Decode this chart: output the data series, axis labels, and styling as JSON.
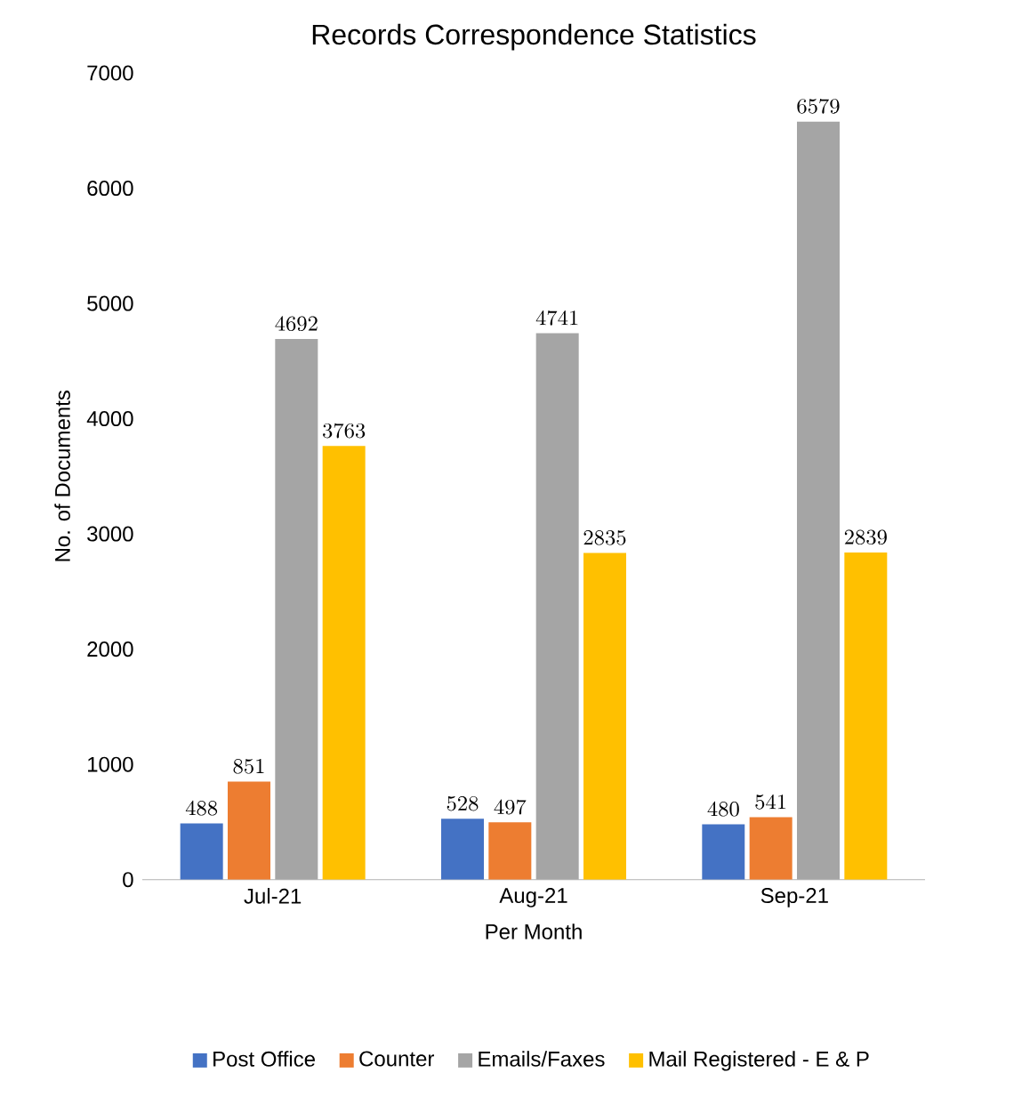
{
  "chart_data": {
    "type": "bar",
    "title": "Records Correspondence Statistics",
    "xlabel": "Per Month",
    "ylabel": "No. of Documents",
    "categories": [
      "Jul-21",
      "Aug-21",
      "Sep-21"
    ],
    "series": [
      {
        "name": "Post Office",
        "color": "#4472c4",
        "values": [
          488,
          528,
          480
        ]
      },
      {
        "name": "Counter",
        "color": "#ed7d31",
        "values": [
          851,
          497,
          541
        ]
      },
      {
        "name": "Emails/Faxes",
        "color": "#a5a5a5",
        "values": [
          4692,
          4741,
          6579
        ]
      },
      {
        "name": "Mail Registered - E & P",
        "color": "#ffc000",
        "values": [
          3763,
          2835,
          2839
        ]
      }
    ],
    "ylim": [
      0,
      7000
    ],
    "yticks": [
      0,
      1000,
      2000,
      3000,
      4000,
      5000,
      6000,
      7000
    ],
    "data_labels": true,
    "grid": false,
    "legend": "bottom"
  }
}
